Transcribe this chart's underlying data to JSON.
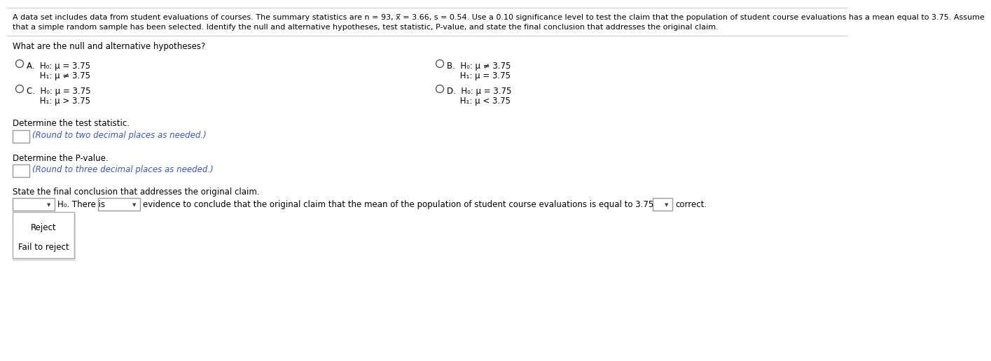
{
  "background_color": "#ffffff",
  "header_line1": "A data set includes data from student evaluations of courses. The summary statistics are n = 93, x̅ = 3.66, s = 0.54. Use a 0.10 significance level to test the claim that the population of student course evaluations has a mean equal to 3.75. Assume",
  "header_line2": "that a simple random sample has been selected. Identify the null and alternative hypotheses, test statistic, P-value, and state the final conclusion that addresses the original claim.",
  "question1": "What are the null and alternative hypotheses?",
  "optionA_label": "A.  H₀: μ = 3.75",
  "optionA_h1": "     H₁: μ ≠ 3.75",
  "optionB_label": "B.  H₀: μ ≠ 3.75",
  "optionB_h1": "     H₁: μ = 3.75",
  "optionC_label": "C.  H₀: μ = 3.75",
  "optionC_h1": "     H₁: μ > 3.75",
  "optionD_label": "D.  H₀: μ = 3.75",
  "optionD_h1": "     H₁: μ < 3.75",
  "question2": "Determine the test statistic.",
  "hint2": "(Round to two decimal places as needed.)",
  "question3": "Determine the P-value.",
  "hint3": "(Round to three decimal places as needed.)",
  "question4": "State the final conclusion that addresses the original claim.",
  "conclusion_text": "evidence to conclude that the original claim that the mean of the population of student course evaluations is equal to 3.75",
  "conclusion_end": "correct.",
  "dropdown1_label": "H₀. There is",
  "reject_label": "Reject",
  "fail_to_reject_label": "Fail to reject",
  "text_color": "#000000",
  "blue_color": "#3355cc",
  "box_color": "#ffffff",
  "border_color": "#aaaaaa",
  "header_fs": 8.0,
  "body_fs": 8.5,
  "option_fs": 8.5,
  "hint_fs": 8.5
}
